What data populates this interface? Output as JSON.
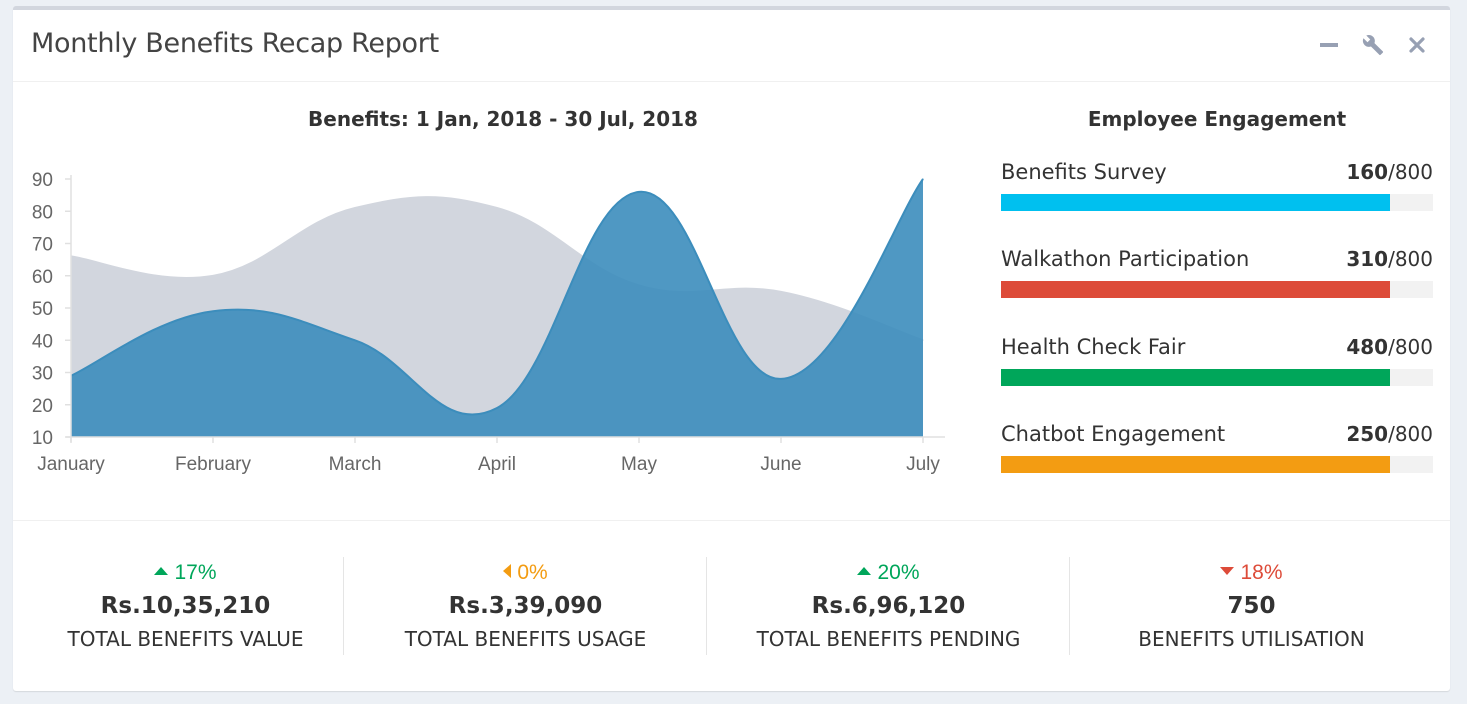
{
  "header": {
    "title": "Monthly Benefits Recap Report",
    "tools": [
      {
        "name": "minimize-icon",
        "glyph": "—"
      },
      {
        "name": "wrench-icon",
        "glyph": "wrench"
      },
      {
        "name": "close-icon",
        "glyph": "×"
      }
    ]
  },
  "chart_title": "Benefits: 1 Jan, 2018 - 30 Jul, 2018",
  "chart_data": {
    "type": "area",
    "categories": [
      "January",
      "February",
      "March",
      "April",
      "May",
      "June",
      "July"
    ],
    "series": [
      {
        "values": [
          66,
          60,
          81,
          81,
          57,
          55,
          40
        ],
        "color": "#d2d6de"
      },
      {
        "values": [
          29,
          49,
          40,
          19,
          86,
          28,
          90
        ],
        "color": "#3c8dbc"
      }
    ],
    "y_ticks": [
      10,
      20,
      30,
      40,
      50,
      60,
      70,
      80,
      90
    ],
    "ylim": [
      10,
      90
    ]
  },
  "engagement": {
    "title": "Employee Engagement",
    "items": [
      {
        "label": "Benefits Survey",
        "value": "160",
        "total": "/800",
        "fill": 0.9,
        "color": "#00c0ef"
      },
      {
        "label": "Walkathon Participation",
        "value": "310",
        "total": "/800",
        "fill": 0.9,
        "color": "#dd4b39"
      },
      {
        "label": "Health Check Fair",
        "value": "480",
        "total": "/800",
        "fill": 0.9,
        "color": "#00a65a"
      },
      {
        "label": "Chatbot Engagement",
        "value": "250",
        "total": "/800",
        "fill": 0.9,
        "color": "#f39c12"
      }
    ]
  },
  "stats": [
    {
      "pct": "17%",
      "dir": "up",
      "color": "#00a65a",
      "value": "Rs.10,35,210",
      "label": "TOTAL BENEFITS VALUE"
    },
    {
      "pct": "0%",
      "dir": "left",
      "color": "#f39c12",
      "value": "Rs.3,39,090",
      "label": "TOTAL BENEFITS USAGE"
    },
    {
      "pct": "20%",
      "dir": "up",
      "color": "#00a65a",
      "value": "Rs.6,96,120",
      "label": "TOTAL BENEFITS PENDING"
    },
    {
      "pct": "18%",
      "dir": "down",
      "color": "#dd4b39",
      "value": "750",
      "label": "BENEFITS UTILISATION"
    }
  ]
}
